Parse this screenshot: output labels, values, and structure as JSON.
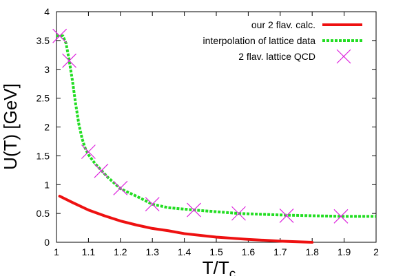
{
  "chart_data": {
    "type": "line",
    "xlabel_main": "T/T",
    "xlabel_sub": "c",
    "ylabel": "U(T) [GeV]",
    "xlim": [
      1,
      2
    ],
    "ylim": [
      0,
      4
    ],
    "x_ticks": [
      "1",
      "1.1",
      "1.2",
      "1.3",
      "1.4",
      "1.5",
      "1.6",
      "1.7",
      "1.8",
      "1.9",
      "2"
    ],
    "y_ticks": [
      "0",
      "0.5",
      "1",
      "1.5",
      "2",
      "2.5",
      "3",
      "3.5",
      "4"
    ],
    "grid": false,
    "legend_position": "top-right",
    "series": [
      {
        "name": "our 2 flav. calc.",
        "style": "solid",
        "color": "#ee1111",
        "x": [
          1.01,
          1.05,
          1.1,
          1.15,
          1.2,
          1.25,
          1.3,
          1.35,
          1.4,
          1.5,
          1.6,
          1.7,
          1.8
        ],
        "y": [
          0.8,
          0.69,
          0.56,
          0.46,
          0.37,
          0.3,
          0.24,
          0.2,
          0.15,
          0.09,
          0.05,
          0.02,
          0.0
        ]
      },
      {
        "name": "interpolation of lattice data",
        "style": "dashed",
        "color": "#22dd22",
        "x": [
          1.0,
          1.02,
          1.03,
          1.04,
          1.05,
          1.06,
          1.07,
          1.08,
          1.09,
          1.1,
          1.12,
          1.14,
          1.16,
          1.18,
          1.2,
          1.25,
          1.3,
          1.35,
          1.43,
          1.57,
          1.72,
          1.89,
          2.0
        ],
        "y": [
          3.58,
          3.58,
          3.45,
          3.15,
          2.8,
          2.4,
          2.05,
          1.8,
          1.63,
          1.52,
          1.37,
          1.25,
          1.13,
          1.03,
          0.93,
          0.8,
          0.66,
          0.6,
          0.56,
          0.5,
          0.47,
          0.45,
          0.45
        ]
      },
      {
        "name": "2 flav. lattice QCD",
        "style": "markers",
        "marker": "x",
        "color": "#dd22dd",
        "x": [
          1.01,
          1.04,
          1.1,
          1.14,
          1.2,
          1.3,
          1.43,
          1.57,
          1.72,
          1.89
        ],
        "y": [
          3.58,
          3.15,
          1.57,
          1.24,
          0.94,
          0.66,
          0.56,
          0.5,
          0.46,
          0.45
        ]
      }
    ]
  }
}
